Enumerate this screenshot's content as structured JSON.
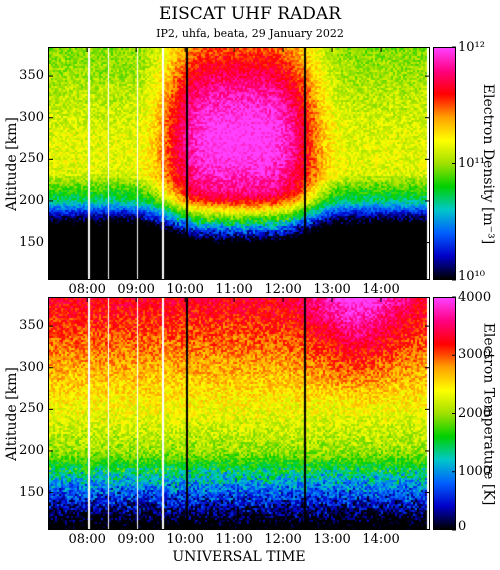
{
  "title": "EISCAT UHF RADAR",
  "subtitle": "IP2, uhfa, beata, 29 January 2022",
  "xlabel": "UNIVERSAL TIME",
  "chart_data": [
    {
      "type": "heatmap",
      "name": "electron-density",
      "ylabel": "Altitude [km]",
      "colorbar_label": "Electron Density [m⁻³]",
      "colorbar_scale": "log",
      "colorbar_range": [
        10000000000.0,
        1000000000000.0
      ],
      "colorbar_ticks": [
        "10¹⁰",
        "10¹¹",
        "10¹²"
      ],
      "x_range_hours": [
        7.2,
        15.0
      ],
      "x_ticks": [
        "08:00",
        "09:00",
        "10:00",
        "11:00",
        "12:00",
        "13:00",
        "14:00"
      ],
      "y_range_km": [
        105,
        385
      ],
      "y_ticks": [
        150,
        200,
        250,
        300,
        350
      ],
      "peak_density": "~5e11 m⁻³ around 10:00–12:00 UT at 230–330 km",
      "data_gaps_utc": [
        "08:00",
        "09:30",
        "14:55"
      ],
      "markers_utc": [
        "10:00",
        "12:24"
      ]
    },
    {
      "type": "heatmap",
      "name": "electron-temperature",
      "ylabel": "Altitude [km]",
      "colorbar_label": "Electron Temperature [K]",
      "colorbar_scale": "linear",
      "colorbar_range": [
        0,
        4000
      ],
      "colorbar_ticks": [
        0,
        1000,
        2000,
        3000,
        4000
      ],
      "x_range_hours": [
        7.2,
        15.0
      ],
      "x_ticks": [
        "08:00",
        "09:00",
        "10:00",
        "11:00",
        "12:00",
        "13:00",
        "14:00"
      ],
      "y_range_km": [
        105,
        385
      ],
      "y_ticks": [
        150,
        200,
        250,
        300,
        350
      ],
      "data_gaps_utc": [
        "08:00",
        "09:30",
        "14:55"
      ],
      "markers_utc": [
        "10:00",
        "12:24"
      ]
    }
  ],
  "colors": {
    "colormap": [
      "#000000",
      "#0000c8",
      "#0060ff",
      "#00c8c8",
      "#00d000",
      "#a0e000",
      "#ffff00",
      "#ffa000",
      "#ff0000",
      "#ff0080",
      "#ff40ff"
    ],
    "marker": "#000000",
    "gap": "#ffffff"
  }
}
